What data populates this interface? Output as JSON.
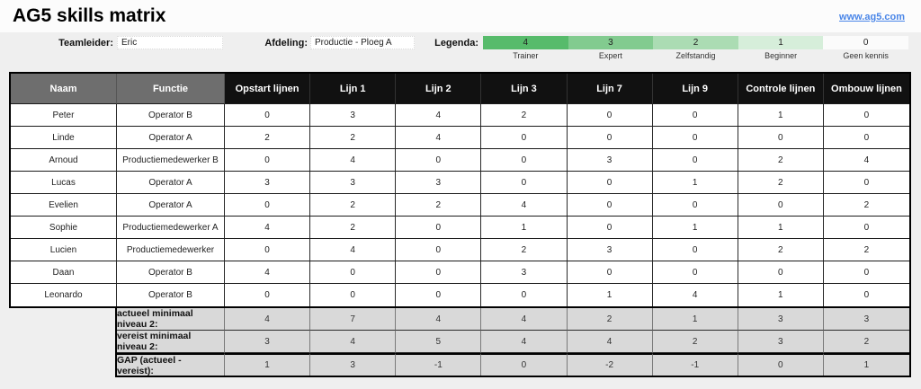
{
  "page": {
    "title": "AG5 skills matrix",
    "link": "www.ag5.com"
  },
  "controls": {
    "teamleider_label": "Teamleider:",
    "teamleider_value": "Eric",
    "afdeling_label": "Afdeling:",
    "afdeling_value": "Productie - Ploeg A",
    "legenda_label": "Legenda:"
  },
  "legend": {
    "items": [
      {
        "level": "4",
        "label": "Trainer"
      },
      {
        "level": "3",
        "label": "Expert"
      },
      {
        "level": "2",
        "label": "Zelfstandig"
      },
      {
        "level": "1",
        "label": "Beginner"
      },
      {
        "level": "0",
        "label": "Geen kennis"
      }
    ]
  },
  "matrix": {
    "columns": [
      "Naam",
      "Functie",
      "Opstart lijnen",
      "Lijn 1",
      "Lijn 2",
      "Lijn 3",
      "Lijn 7",
      "Lijn 9",
      "Controle lijnen",
      "Ombouw lijnen"
    ],
    "rows": [
      {
        "name": "Peter",
        "functie": "Operator B",
        "levels": [
          0,
          3,
          4,
          2,
          0,
          0,
          1,
          0
        ]
      },
      {
        "name": "Linde",
        "functie": "Operator A",
        "levels": [
          2,
          2,
          4,
          0,
          0,
          0,
          0,
          0
        ]
      },
      {
        "name": "Arnoud",
        "functie": "Productiemedewerker B",
        "levels": [
          0,
          4,
          0,
          0,
          3,
          0,
          2,
          4
        ]
      },
      {
        "name": "Lucas",
        "functie": "Operator A",
        "levels": [
          3,
          3,
          3,
          0,
          0,
          1,
          2,
          0
        ]
      },
      {
        "name": "Evelien",
        "functie": "Operator A",
        "levels": [
          0,
          2,
          2,
          4,
          0,
          0,
          0,
          2
        ]
      },
      {
        "name": "Sophie",
        "functie": "Productiemedewerker A",
        "levels": [
          4,
          2,
          0,
          1,
          0,
          1,
          1,
          0
        ]
      },
      {
        "name": "Lucien",
        "functie": "Productiemedewerker",
        "levels": [
          0,
          4,
          0,
          2,
          3,
          0,
          2,
          2
        ]
      },
      {
        "name": "Daan",
        "functie": "Operator B",
        "levels": [
          4,
          0,
          0,
          3,
          0,
          0,
          0,
          0
        ]
      },
      {
        "name": "Leonardo",
        "functie": "Operator B",
        "levels": [
          0,
          0,
          0,
          0,
          1,
          4,
          1,
          0
        ]
      }
    ],
    "summary": [
      {
        "label": "actueel minimaal niveau 2:",
        "values": [
          4,
          7,
          4,
          4,
          2,
          1,
          3,
          3
        ]
      },
      {
        "label": "vereist minimaal niveau 2:",
        "values": [
          3,
          4,
          5,
          4,
          4,
          2,
          3,
          2
        ]
      },
      {
        "label": "GAP (actueel - vereist):",
        "values": [
          1,
          3,
          -1,
          0,
          -2,
          -1,
          0,
          1
        ]
      }
    ]
  },
  "colors": {
    "level_4": "#57BB6B",
    "level_3": "#82CB8F",
    "level_2": "#ABDCB3",
    "level_1": "#D6EEDA",
    "level_0": "#FBFBFB",
    "gap_positive": "#3DCB3D",
    "gap_negative": "#FA5151",
    "header_gray": "#6E6E6E",
    "header_black": "#111111",
    "summary_gray": "#D9D9D9",
    "link_blue": "#4A86E8"
  }
}
